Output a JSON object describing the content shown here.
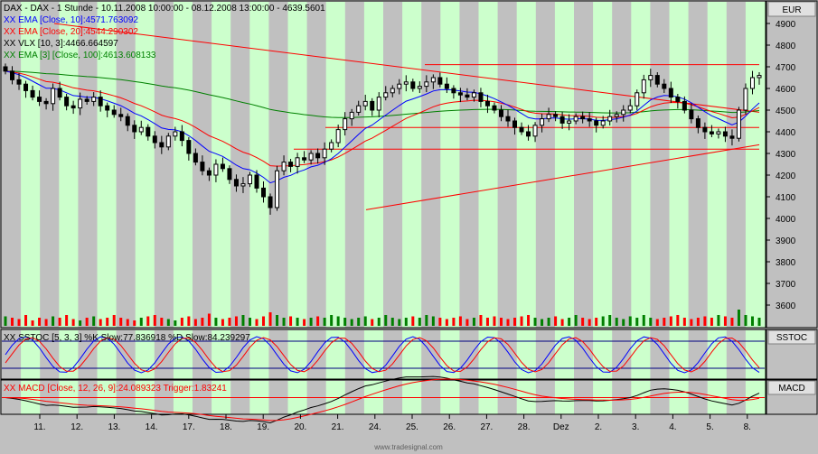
{
  "chart_data": {
    "type": "candlestick",
    "title": "DAX - DAX - 1 Stunde - 10.11.2008 10:00:00 - 08.12.2008 13:00:00 - 4639.5601",
    "currency": "EUR",
    "ylim": [
      3500,
      5000
    ],
    "y_ticks": [
      3600,
      3700,
      3800,
      3900,
      4000,
      4100,
      4200,
      4300,
      4400,
      4500,
      4600,
      4700,
      4800,
      4900
    ],
    "x_labels": [
      "11.",
      "12.",
      "13.",
      "14.",
      "17.",
      "18.",
      "19.",
      "20.",
      "21.",
      "24.",
      "25.",
      "26.",
      "27.",
      "28.",
      "Dez",
      "2.",
      "3.",
      "4.",
      "5.",
      "8."
    ],
    "legend": [
      {
        "id": "ema10",
        "text": "XX EMA [Close, 10]:4571.763092",
        "color": "#0000ff"
      },
      {
        "id": "ema20",
        "text": "XX EMA [Close, 20]:4544.290302",
        "color": "#ff0000"
      },
      {
        "id": "vlx",
        "text": "XX VLX [10, 3]:4466.664597",
        "color": "#000000"
      },
      {
        "id": "ema3",
        "text": "XX EMA [3] [Close, 100]:4613.608133",
        "color": "#008000"
      }
    ],
    "close": [
      4680,
      4640,
      4620,
      4590,
      4560,
      4540,
      4530,
      4600,
      4560,
      4520,
      4510,
      4550,
      4540,
      4560,
      4520,
      4500,
      4480,
      4470,
      4430,
      4400,
      4420,
      4380,
      4350,
      4330,
      4380,
      4400,
      4360,
      4300,
      4260,
      4220,
      4200,
      4250,
      4230,
      4180,
      4150,
      4160,
      4200,
      4140,
      4100,
      4050,
      4220,
      4260,
      4240,
      4280,
      4270,
      4300,
      4280,
      4320,
      4350,
      4410,
      4460,
      4490,
      4520,
      4540,
      4500,
      4560,
      4580,
      4600,
      4620,
      4630,
      4600,
      4610,
      4630,
      4650,
      4620,
      4600,
      4580,
      4570,
      4560,
      4580,
      4540,
      4520,
      4500,
      4470,
      4450,
      4420,
      4400,
      4380,
      4430,
      4460,
      4480,
      4470,
      4440,
      4450,
      4470,
      4460,
      4450,
      4430,
      4450,
      4470,
      4480,
      4500,
      4520,
      4580,
      4640,
      4660,
      4620,
      4600,
      4560,
      4540,
      4500,
      4460,
      4420,
      4400,
      4390,
      4400,
      4380,
      4370,
      4500,
      4600,
      4650,
      4660
    ],
    "reference_lines": {
      "resistance": 4710,
      "mid": 4420,
      "support": 4320,
      "downtrend": {
        "from": 4900,
        "to": 4690
      },
      "uptrend": {
        "from": 4040,
        "to": 4340
      }
    },
    "volume_relative": [
      0.35,
      0.3,
      0.25,
      0.4,
      0.2,
      0.3,
      0.25,
      0.35,
      0.3,
      0.4,
      0.25,
      0.2,
      0.3,
      0.35,
      0.25,
      0.3,
      0.4,
      0.3,
      0.25,
      0.2,
      0.3,
      0.35,
      0.4,
      0.3,
      0.25,
      0.2,
      0.3,
      0.35,
      0.25,
      0.3,
      0.45,
      0.3,
      0.25,
      0.3,
      0.35,
      0.4,
      0.3,
      0.25,
      0.35,
      0.5,
      0.4,
      0.3,
      0.35,
      0.3,
      0.25,
      0.3,
      0.35,
      0.3,
      0.4,
      0.35,
      0.3,
      0.25,
      0.3,
      0.35,
      0.25,
      0.3,
      0.4,
      0.3,
      0.25,
      0.3,
      0.35,
      0.3,
      0.4,
      0.35,
      0.3,
      0.25,
      0.3,
      0.35,
      0.25,
      0.3,
      0.4,
      0.3,
      0.35,
      0.3,
      0.25,
      0.3,
      0.35,
      0.4,
      0.3,
      0.25,
      0.3,
      0.35,
      0.25,
      0.3,
      0.4,
      0.3,
      0.25,
      0.3,
      0.35,
      0.4,
      0.3,
      0.25,
      0.35,
      0.3,
      0.4,
      0.3,
      0.25,
      0.3,
      0.35,
      0.4,
      0.3,
      0.25,
      0.3,
      0.35,
      0.3,
      0.4,
      0.35,
      0.3,
      0.6,
      0.4,
      0.35,
      0.3
    ],
    "sstoc": {
      "label": "XX SSTOC [5, 3, 3] %K Slow:77.836918 %D Slow:84.239297",
      "panel_label": "SSTOC"
    },
    "macd": {
      "label": "XX MACD [Close, 12, 26, 9]:24.089323 Trigger:1.83241",
      "panel_label": "MACD"
    },
    "watermark": "www.tradesignal.com"
  }
}
